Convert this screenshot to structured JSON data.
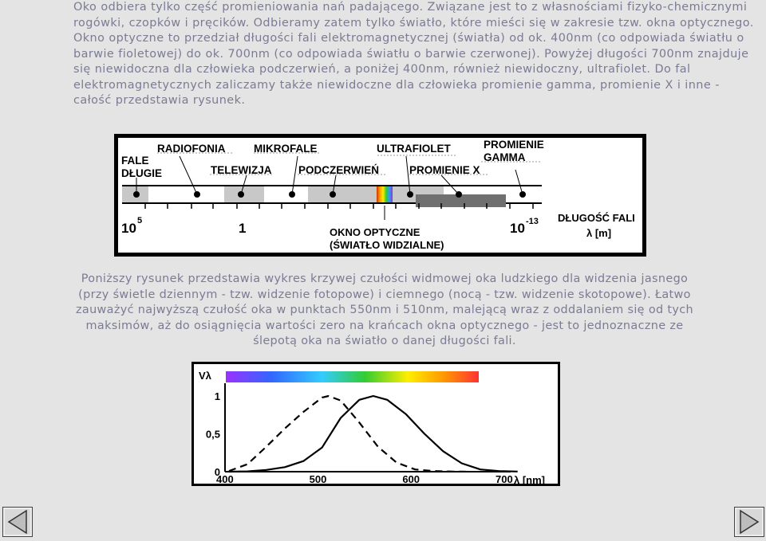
{
  "text": {
    "paragraph1": "Oko odbiera tylko część promieniowania nań padającego. Związane jest to z własnościami fizyko-chemicznymi rogówki, czopków i pręcików. Odbieramy zatem tylko światło, które mieści się w zakresie tzw. okna optycznego. Okno optyczne to przedział długości fali elektromagnetycznej (światła) od ok. 400nm (co odpowiada  światłu o barwie fioletowej) do ok. 700nm (co odpowiada światłu o barwie czerwonej). Powyżej długości 700nm znajduje się niewidoczna dla człowieka podczerwień, a poniżej 400nm, również niewidoczny, ultrafiolet. Do fal elektromagnetycznych zaliczamy także niewidoczne dla człowieka promienie gamma, promienie X i inne - całość przedstawia rysunek.",
    "paragraph2": "Poniższy rysunek przedstawia wykres krzywej czułości widmowej oka ludzkiego dla widzenia jasnego (przy świetle dziennym - tzw. widzenie fotopowe) i ciemnego (nocą - tzw. widzenie skotopowe). Łatwo zauważyć najwyższą czułość oka w punktach 550nm i 510nm, malejącą wraz z oddalaniem się od tych maksimów, aż do osiągnięcia wartości zero na krańcach okna optycznego - jest to jednoznaczne ze ślepotą oka na światło o danej długości fali."
  },
  "spectrum_figure": {
    "labels": {
      "fale_dlugie_1": "FALE",
      "fale_dlugie_2": "DŁUGIE",
      "radiofonia": "RADIOFONIA",
      "telewizja": "TELEWIZJA",
      "mikrofale": "MIKROFALE",
      "podczerwien": "PODCZERWIEŃ",
      "ultrafiolet": "ULTRAFIOLET",
      "promienie_x": "PROMIENIE X",
      "gamma_1": "PROMIENIE",
      "gamma_2": "GAMMA",
      "scale_left": "10",
      "scale_left_exp": "5",
      "scale_mid": "1",
      "scale_right": "10",
      "scale_right_exp": "-13",
      "okno_1": "OKNO OPTYCZNE",
      "okno_2": "(ŚWIATŁO WIDZIALNE)",
      "axis_1": "DŁUGOŚĆ FALI",
      "axis_2": "λ [m]"
    }
  },
  "sensitivity_chart": {
    "chart_data": {
      "type": "line",
      "ylabel": "Vλ",
      "xlabel": "λ [nm]",
      "x_ticks": [
        "400",
        "500",
        "600",
        "700"
      ],
      "y_ticks": [
        "1",
        "0,5",
        "0"
      ],
      "xlim": [
        390,
        720
      ],
      "ylim": [
        0,
        1.1
      ],
      "series": [
        {
          "style": "solid",
          "x": [
            400,
            420,
            440,
            460,
            480,
            500,
            520,
            540,
            555,
            570,
            590,
            610,
            630,
            650,
            670,
            690,
            710
          ],
          "values": [
            0.0,
            0.004,
            0.023,
            0.06,
            0.14,
            0.32,
            0.71,
            0.95,
            1.0,
            0.95,
            0.76,
            0.5,
            0.27,
            0.11,
            0.03,
            0.008,
            0.002
          ]
        },
        {
          "style": "dashed",
          "x": [
            400,
            420,
            440,
            460,
            480,
            500,
            507,
            520,
            540,
            560,
            580,
            600,
            620,
            640,
            660
          ],
          "values": [
            0.01,
            0.1,
            0.33,
            0.57,
            0.79,
            0.98,
            1.0,
            0.94,
            0.65,
            0.33,
            0.12,
            0.03,
            0.008,
            0.002,
            0.0
          ]
        }
      ]
    }
  },
  "nav": {
    "prev": "previous",
    "next": "next"
  }
}
